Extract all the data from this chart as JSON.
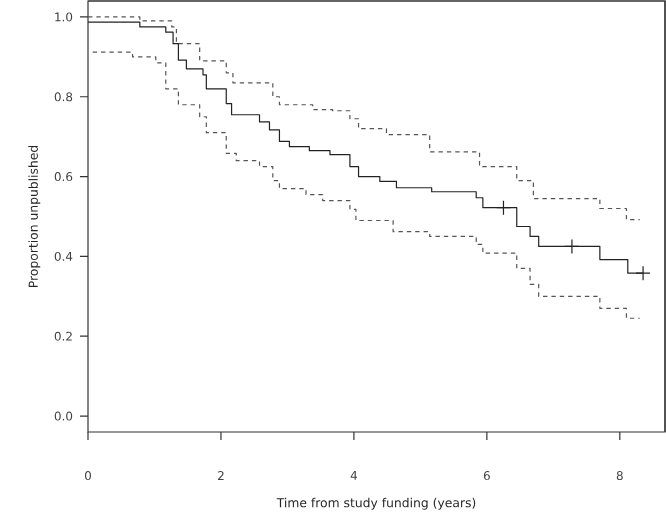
{
  "chart_data": {
    "type": "step",
    "xlabel": "Time from study funding (years)",
    "ylabel": "Proportion unpublished",
    "xlim": [
      0,
      8.68
    ],
    "ylim": [
      -0.04,
      1.04
    ],
    "xticks": [
      0,
      2,
      4,
      6,
      8
    ],
    "yticks": [
      {
        "value": 0,
        "label": "0.0"
      },
      {
        "value": 0.2,
        "label": "0.2"
      },
      {
        "value": 0.4,
        "label": "0.4"
      },
      {
        "value": 0.6,
        "label": "0.6"
      },
      {
        "value": 0.8,
        "label": "0.8"
      },
      {
        "value": 1,
        "label": "1.0"
      }
    ],
    "series": [
      {
        "color": "#555555",
        "line_style": "dashed",
        "x": [
          0,
          0.78,
          1.26,
          1.33,
          1.68,
          2.08,
          2.18,
          2.78,
          2.88,
          3.38,
          3.68,
          3.94,
          4.07,
          4.49,
          5.14,
          5.89,
          6.45,
          6.7,
          7.7,
          8.1,
          8.3
        ],
        "values": [
          1.0,
          0.99,
          0.975,
          0.933,
          0.89,
          0.86,
          0.835,
          0.8,
          0.78,
          0.768,
          0.765,
          0.745,
          0.72,
          0.705,
          0.662,
          0.625,
          0.59,
          0.545,
          0.52,
          0.492,
          0.492
        ]
      },
      {
        "color": "#555555",
        "line_style": "dashed",
        "x": [
          0.07,
          0.67,
          1.02,
          1.17,
          1.36,
          1.68,
          1.78,
          2.08,
          2.23,
          2.58,
          2.78,
          2.88,
          3.28,
          3.53,
          3.94,
          4.03,
          4.59,
          5.14,
          5.84,
          5.94,
          6.45,
          6.65,
          6.78,
          7.7,
          8.1,
          8.3
        ],
        "values": [
          0.912,
          0.9,
          0.885,
          0.82,
          0.78,
          0.75,
          0.71,
          0.658,
          0.64,
          0.625,
          0.59,
          0.57,
          0.555,
          0.54,
          0.518,
          0.49,
          0.462,
          0.45,
          0.43,
          0.408,
          0.37,
          0.33,
          0.3,
          0.27,
          0.245,
          0.245
        ]
      },
      {
        "color": "#222222",
        "line_style": "solid",
        "x": [
          0,
          0.78,
          1.17,
          1.28,
          1.36,
          1.48,
          1.73,
          1.78,
          2.08,
          2.16,
          2.58,
          2.73,
          2.88,
          3.03,
          3.33,
          3.64,
          3.94,
          4.07,
          4.39,
          4.64,
          5.17,
          5.84,
          5.94,
          6.45,
          6.65,
          6.78,
          7.7,
          8.12,
          8.35
        ],
        "values": [
          0.987,
          0.975,
          0.962,
          0.933,
          0.892,
          0.87,
          0.855,
          0.82,
          0.783,
          0.755,
          0.737,
          0.717,
          0.688,
          0.675,
          0.665,
          0.655,
          0.625,
          0.6,
          0.588,
          0.572,
          0.562,
          0.547,
          0.522,
          0.475,
          0.45,
          0.425,
          0.392,
          0.358,
          0.358
        ]
      },
      {
        "type": "scatter",
        "marker": "cross",
        "color": "#222222",
        "x": [
          6.25,
          7.28,
          8.35
        ],
        "values": [
          0.522,
          0.425,
          0.358
        ]
      }
    ]
  }
}
